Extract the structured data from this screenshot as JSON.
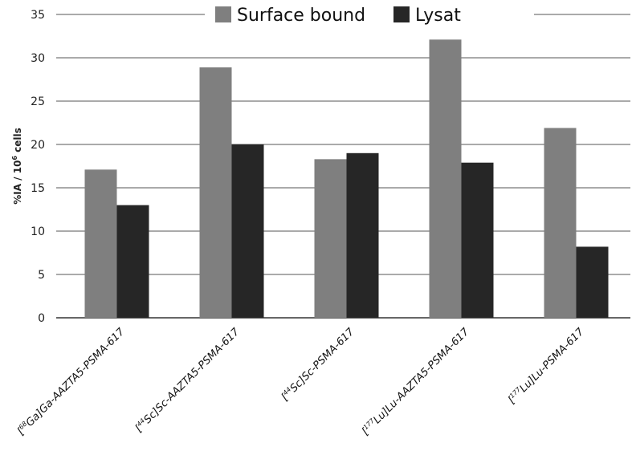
{
  "chart_data": {
    "type": "bar",
    "title": "",
    "xlabel": "",
    "ylabel": "%IA / 10^6 cells",
    "ylabel_parts": {
      "pre": "%IA / 10",
      "sup": "6",
      "post": " cells"
    },
    "ylim": [
      0,
      35
    ],
    "yticks": [
      0,
      5,
      10,
      15,
      20,
      25,
      30,
      35
    ],
    "grid": true,
    "legend": "top",
    "categories": [
      "[68Ga]Ga-AAZTA5-PSMA-617",
      "[44Sc]Sc-AAZTA5-PSMA-617",
      "[44Sc]Sc-PSMA-617",
      "[177Lu]Lu-AAZTA5-PSMA-617",
      "[177Lu]Lu-PSMA-617"
    ],
    "series": [
      {
        "name": "Surface bound",
        "color": "#7f7f7f",
        "values": [
          17.1,
          28.9,
          18.3,
          32.1,
          21.9
        ]
      },
      {
        "name": "Lysat",
        "color": "#262626",
        "values": [
          13.0,
          20.0,
          19.0,
          17.9,
          8.2
        ]
      }
    ]
  }
}
